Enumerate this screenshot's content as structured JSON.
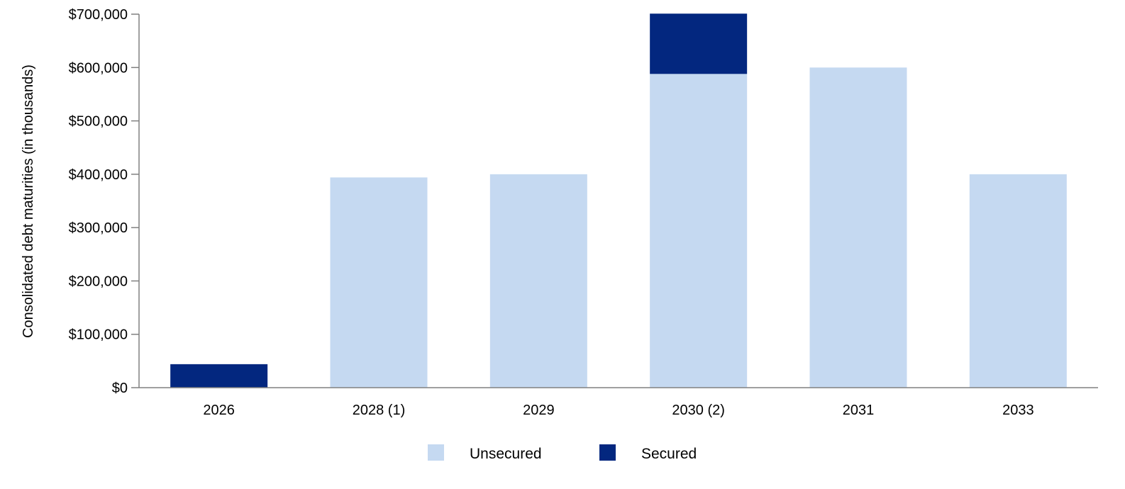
{
  "chart_data": {
    "type": "bar",
    "stacked": true,
    "categories": [
      "2026",
      "2028 (1)",
      "2029",
      "2030 (2)",
      "2031",
      "2033"
    ],
    "series": [
      {
        "name": "Unsecured",
        "color": "#c5d9f1",
        "values": [
          0,
          394000,
          400000,
          588000,
          600000,
          400000
        ]
      },
      {
        "name": "Secured",
        "color": "#03277f",
        "values": [
          44000,
          0,
          0,
          113000,
          0,
          0
        ]
      }
    ],
    "ylabel": "Consolidated debt maturities (in thousands)",
    "ylim": [
      0,
      700000
    ],
    "yticks": [
      0,
      100000,
      200000,
      300000,
      400000,
      500000,
      600000,
      700000
    ],
    "ytick_labels": [
      "$0",
      "$100,000",
      "$200,000",
      "$300,000",
      "$400,000",
      "$500,000",
      "$600,000",
      "$700,000"
    ],
    "grid": false,
    "legend_position": "bottom-center"
  }
}
